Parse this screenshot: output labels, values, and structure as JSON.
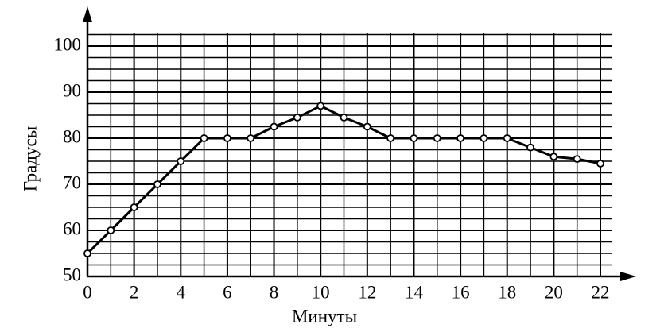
{
  "chart_data": {
    "type": "line",
    "x_label": "Минуты",
    "y_label": "Градусы",
    "x": [
      0,
      1,
      2,
      3,
      4,
      5,
      6,
      7,
      8,
      9,
      10,
      11,
      12,
      13,
      14,
      15,
      16,
      17,
      18,
      19,
      20,
      21,
      22
    ],
    "series": [
      {
        "color": "#000000",
        "values": [
          55,
          60,
          65,
          70,
          75,
          80,
          80,
          80,
          82.5,
          84.5,
          87,
          84.5,
          82.5,
          80,
          80,
          80,
          80,
          80,
          80,
          78,
          76,
          75.5,
          74.5
        ]
      }
    ],
    "xlim": [
      0,
      22
    ],
    "xticks": [
      0,
      2,
      4,
      6,
      8,
      10,
      12,
      14,
      16,
      18,
      20,
      22
    ],
    "ylim": [
      50,
      100
    ],
    "yticks": [
      50,
      60,
      70,
      80,
      90,
      100
    ],
    "grid": true
  }
}
